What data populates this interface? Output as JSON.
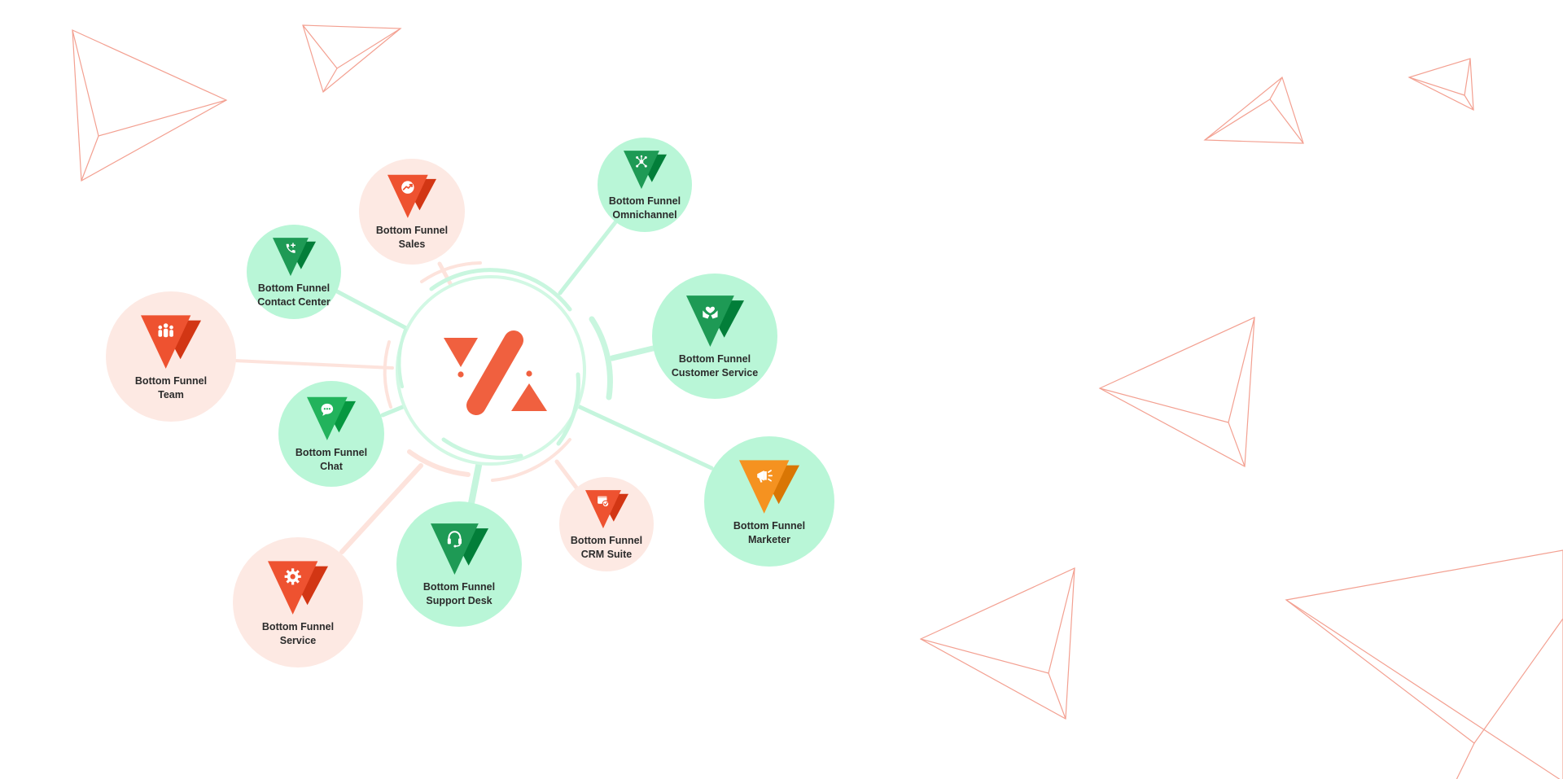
{
  "colors": {
    "orange_red": "#ee5230",
    "dark_green": "#1e9a55",
    "bright_green": "#22b35c",
    "amber": "#f59220",
    "pink_bg": "#fde9e3",
    "green_bg": "#b9f6d7",
    "deco_lines": "#f08a78"
  },
  "hub": {
    "logo_name": "bottom-funnel-logo"
  },
  "products": [
    {
      "id": "sales",
      "line1": "Bottom Funnel",
      "line2": "Sales",
      "icon": "trending-chart-icon",
      "theme": "pink",
      "color": "#ee5230"
    },
    {
      "id": "omnichannel",
      "line1": "Bottom Funnel",
      "line2": "Omnichannel",
      "icon": "network-hub-icon",
      "theme": "green",
      "color": "#1e9a55"
    },
    {
      "id": "contact-center",
      "line1": "Bottom Funnel",
      "line2": "Contact Center",
      "icon": "phone-plus-icon",
      "theme": "green",
      "color": "#1e9a55"
    },
    {
      "id": "customer-service",
      "line1": "Bottom Funnel",
      "line2": "Customer Service",
      "icon": "heart-hands-icon",
      "theme": "green",
      "color": "#1e9a55"
    },
    {
      "id": "team",
      "line1": "Bottom Funnel",
      "line2": "Team",
      "icon": "team-people-icon",
      "theme": "pink",
      "color": "#ee5230"
    },
    {
      "id": "chat",
      "line1": "Bottom Funnel",
      "line2": "Chat",
      "icon": "chat-bubble-icon",
      "theme": "green",
      "color": "#22b35c"
    },
    {
      "id": "marketer",
      "line1": "Bottom Funnel",
      "line2": "Marketer",
      "icon": "megaphone-icon",
      "theme": "green",
      "color": "#f59220"
    },
    {
      "id": "crm-suite",
      "line1": "Bottom Funnel",
      "line2": "CRM Suite",
      "icon": "crm-browser-icon",
      "theme": "pink",
      "color": "#ee5230"
    },
    {
      "id": "support-desk",
      "line1": "Bottom Funnel",
      "line2": "Support Desk",
      "icon": "headset-icon",
      "theme": "green",
      "color": "#1e9a55"
    },
    {
      "id": "service",
      "line1": "Bottom Funnel",
      "line2": "Service",
      "icon": "gear-icon",
      "theme": "pink",
      "color": "#ee5230"
    }
  ]
}
